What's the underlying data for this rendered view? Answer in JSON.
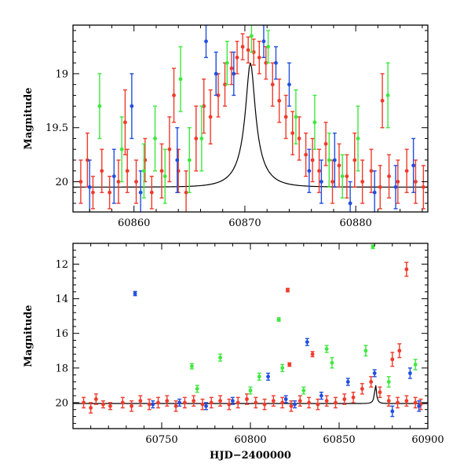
{
  "colors": {
    "blue": "#1f4fe0",
    "green": "#3ee83e",
    "red": "#f03a2a",
    "model": "#000000"
  },
  "chart_data": [
    {
      "type": "scatter",
      "panel": "top",
      "title": "",
      "xlabel": "",
      "ylabel": "Magnitude",
      "xlim": [
        60854.5,
        60886.5
      ],
      "ylim": [
        20.28,
        18.55
      ],
      "y_inverted": true,
      "xticks": [
        60860,
        60870,
        60880
      ],
      "xtick_labels": [
        "60860",
        "60870",
        "60880"
      ],
      "yticks": [
        19,
        19.5,
        20
      ],
      "ytick_labels": [
        "19",
        "19.5",
        "20"
      ],
      "model_curve": {
        "baseline": 20.05,
        "peak_mag": 18.9,
        "t0": 60870.5,
        "tE": 2.1
      },
      "series": [
        {
          "color_key": "red",
          "points": [
            [
              60855.2,
              20.0,
              0.2
            ],
            [
              60855.8,
              19.8,
              0.25
            ],
            [
              60856.3,
              20.1,
              0.15
            ],
            [
              60857.1,
              19.9,
              0.2
            ],
            [
              60857.8,
              20.1,
              0.15
            ],
            [
              60858.6,
              20.0,
              0.2
            ],
            [
              60859.4,
              19.9,
              0.2
            ],
            [
              60860.2,
              20.0,
              0.2
            ],
            [
              60861.0,
              19.8,
              0.2
            ],
            [
              60861.6,
              20.1,
              0.15
            ],
            [
              60862.5,
              19.9,
              0.25
            ],
            [
              60863.2,
              19.7,
              0.3
            ],
            [
              60864.0,
              19.9,
              0.2
            ],
            [
              60864.7,
              20.1,
              0.2
            ],
            [
              60865.6,
              19.6,
              0.3
            ],
            [
              60866.3,
              19.3,
              0.25
            ],
            [
              60866.9,
              19.4,
              0.25
            ],
            [
              60867.6,
              19.2,
              0.2
            ],
            [
              60868.2,
              19.1,
              0.2
            ],
            [
              60868.8,
              18.95,
              0.15
            ],
            [
              60869.3,
              18.85,
              0.15
            ],
            [
              60869.8,
              18.75,
              0.12
            ],
            [
              60870.3,
              18.78,
              0.12
            ],
            [
              60870.8,
              18.8,
              0.12
            ],
            [
              60871.3,
              18.85,
              0.15
            ],
            [
              60871.9,
              18.9,
              0.15
            ],
            [
              60872.5,
              19.1,
              0.2
            ],
            [
              60873.1,
              19.25,
              0.2
            ],
            [
              60873.7,
              19.4,
              0.2
            ],
            [
              60874.3,
              19.55,
              0.2
            ],
            [
              60874.9,
              19.6,
              0.2
            ],
            [
              60875.5,
              19.75,
              0.2
            ],
            [
              60876.1,
              19.8,
              0.2
            ],
            [
              60876.7,
              19.9,
              0.2
            ],
            [
              60877.3,
              19.65,
              0.2
            ],
            [
              60877.9,
              20.0,
              0.2
            ],
            [
              60878.5,
              19.85,
              0.2
            ],
            [
              60879.2,
              19.95,
              0.2
            ],
            [
              60879.9,
              19.8,
              0.25
            ],
            [
              60880.6,
              20.0,
              0.2
            ],
            [
              60881.4,
              19.9,
              0.2
            ],
            [
              60882.2,
              20.05,
              0.2
            ],
            [
              60883.0,
              19.95,
              0.2
            ],
            [
              60883.8,
              20.0,
              0.2
            ],
            [
              60884.6,
              19.9,
              0.2
            ],
            [
              60885.4,
              20.0,
              0.2
            ],
            [
              60886.1,
              20.05,
              0.2
            ],
            [
              60882.4,
              19.25,
              0.25
            ],
            [
              60859.2,
              19.45,
              0.3
            ],
            [
              60863.6,
              19.2,
              0.25
            ]
          ]
        },
        {
          "color_key": "blue",
          "points": [
            [
              60856.0,
              20.05,
              0.25
            ],
            [
              60858.2,
              19.95,
              0.25
            ],
            [
              60860.6,
              20.1,
              0.2
            ],
            [
              60863.9,
              19.8,
              0.3
            ],
            [
              60866.5,
              18.7,
              0.15
            ],
            [
              60867.4,
              19.0,
              0.2
            ],
            [
              60869.0,
              19.0,
              0.2
            ],
            [
              60871.7,
              18.7,
              0.15
            ],
            [
              60872.8,
              18.9,
              0.15
            ],
            [
              60874.0,
              19.1,
              0.2
            ],
            [
              60875.8,
              19.9,
              0.2
            ],
            [
              60876.9,
              20.0,
              0.2
            ],
            [
              60878.1,
              19.8,
              0.25
            ],
            [
              60879.5,
              20.2,
              0.2
            ],
            [
              60881.7,
              20.1,
              0.2
            ],
            [
              60883.6,
              20.05,
              0.2
            ],
            [
              60885.2,
              19.85,
              0.25
            ],
            [
              60859.8,
              19.3,
              0.3
            ]
          ]
        },
        {
          "color_key": "green",
          "points": [
            [
              60856.9,
              19.3,
              0.3
            ],
            [
              60858.9,
              19.7,
              0.3
            ],
            [
              60861.9,
              19.6,
              0.3
            ],
            [
              60862.8,
              19.95,
              0.25
            ],
            [
              60864.2,
              19.05,
              0.3
            ],
            [
              60866.1,
              19.6,
              0.3
            ],
            [
              60868.4,
              18.9,
              0.2
            ],
            [
              60870.6,
              18.65,
              0.15
            ],
            [
              60872.1,
              18.75,
              0.15
            ],
            [
              60874.6,
              19.4,
              0.25
            ],
            [
              60876.3,
              19.45,
              0.25
            ],
            [
              60877.6,
              19.8,
              0.25
            ],
            [
              60878.8,
              19.95,
              0.2
            ],
            [
              60880.2,
              19.6,
              0.3
            ],
            [
              60882.9,
              19.2,
              0.3
            ],
            [
              60865.0,
              19.8,
              0.3
            ],
            [
              60860.9,
              19.9,
              0.25
            ]
          ]
        }
      ]
    },
    {
      "type": "scatter",
      "panel": "bottom",
      "title": "",
      "xlabel": "HJD−2400000",
      "ylabel": "Magnitude",
      "xlim": [
        60700,
        60900
      ],
      "ylim": [
        21.5,
        10.8
      ],
      "y_inverted": true,
      "xticks": [
        60750,
        60800,
        60850,
        60900
      ],
      "xtick_labels": [
        "60750",
        "60800",
        "60850",
        "60900"
      ],
      "yticks": [
        12,
        14,
        16,
        18,
        20
      ],
      "ytick_labels": [
        "12",
        "14",
        "16",
        "18",
        "20"
      ],
      "model_curve": {
        "baseline": 20.05,
        "peak_mag": 18.9,
        "t0": 60870.5,
        "tE": 2.1
      },
      "series": [
        {
          "color_key": "red",
          "points": [
            [
              60706,
              20.0,
              0.3
            ],
            [
              60710,
              20.3,
              0.3
            ],
            [
              60713,
              19.8,
              0.3
            ],
            [
              60717,
              20.1,
              0.2
            ],
            [
              60721,
              20.2,
              0.2
            ],
            [
              60728,
              20.0,
              0.3
            ],
            [
              60733,
              20.2,
              0.3
            ],
            [
              60738,
              19.9,
              0.3
            ],
            [
              60743,
              20.1,
              0.3
            ],
            [
              60748,
              20.0,
              0.3
            ],
            [
              60753,
              19.9,
              0.3
            ],
            [
              60758,
              20.2,
              0.3
            ],
            [
              60763,
              20.0,
              0.3
            ],
            [
              60768,
              19.9,
              0.3
            ],
            [
              60773,
              20.1,
              0.3
            ],
            [
              60778,
              20.0,
              0.3
            ],
            [
              60783,
              19.9,
              0.3
            ],
            [
              60788,
              20.1,
              0.3
            ],
            [
              60793,
              20.0,
              0.3
            ],
            [
              60798,
              19.8,
              0.3
            ],
            [
              60803,
              20.0,
              0.3
            ],
            [
              60808,
              20.1,
              0.3
            ],
            [
              60813,
              19.9,
              0.3
            ],
            [
              60818,
              20.0,
              0.3
            ],
            [
              60823,
              20.2,
              0.3
            ],
            [
              60828,
              19.9,
              0.3
            ],
            [
              60833,
              20.0,
              0.3
            ],
            [
              60838,
              20.1,
              0.3
            ],
            [
              60843,
              19.9,
              0.3
            ],
            [
              60848,
              20.0,
              0.3
            ],
            [
              60853,
              19.8,
              0.3
            ],
            [
              60858,
              19.7,
              0.3
            ],
            [
              60863,
              19.2,
              0.3
            ],
            [
              60868,
              18.8,
              0.3
            ],
            [
              60873,
              19.4,
              0.3
            ],
            [
              60878,
              19.9,
              0.3
            ],
            [
              60883,
              20.0,
              0.3
            ],
            [
              60888,
              19.9,
              0.3
            ],
            [
              60893,
              20.0,
              0.3
            ],
            [
              60896,
              20.1,
              0.3
            ],
            [
              60821,
              13.5,
              0.1
            ],
            [
              60822,
              17.8,
              0.1
            ],
            [
              60835,
              17.2,
              0.15
            ],
            [
              60880,
              17.5,
              0.4
            ],
            [
              60888,
              12.3,
              0.4
            ],
            [
              60884,
              17.0,
              0.4
            ]
          ]
        },
        {
          "color_key": "blue",
          "points": [
            [
              60735,
              13.7,
              0.12
            ],
            [
              60760,
              20.0,
              0.2
            ],
            [
              60790,
              19.9,
              0.2
            ],
            [
              60810,
              18.5,
              0.2
            ],
            [
              60820,
              19.8,
              0.2
            ],
            [
              60832,
              16.5,
              0.2
            ],
            [
              60840,
              19.6,
              0.2
            ],
            [
              60855,
              18.8,
              0.2
            ],
            [
              60870,
              18.3,
              0.2
            ],
            [
              60880,
              20.5,
              0.3
            ],
            [
              60890,
              18.3,
              0.3
            ],
            [
              60895,
              20.2,
              0.3
            ],
            [
              60745,
              20.1,
              0.2
            ],
            [
              60775,
              20.2,
              0.2
            ],
            [
              60825,
              20.1,
              0.2
            ]
          ]
        },
        {
          "color_key": "green",
          "points": [
            [
              60767,
              17.9,
              0.15
            ],
            [
              60783,
              17.4,
              0.2
            ],
            [
              60805,
              18.5,
              0.2
            ],
            [
              60816,
              15.2,
              0.1
            ],
            [
              60818,
              18.0,
              0.2
            ],
            [
              60843,
              16.9,
              0.2
            ],
            [
              60846,
              17.7,
              0.3
            ],
            [
              60865,
              17.0,
              0.3
            ],
            [
              60869,
              11.0,
              0.1
            ],
            [
              60878,
              18.8,
              0.3
            ],
            [
              60893,
              17.8,
              0.3
            ],
            [
              60770,
              19.2,
              0.2
            ],
            [
              60800,
              19.3,
              0.2
            ],
            [
              60830,
              19.3,
              0.2
            ]
          ]
        }
      ]
    }
  ]
}
